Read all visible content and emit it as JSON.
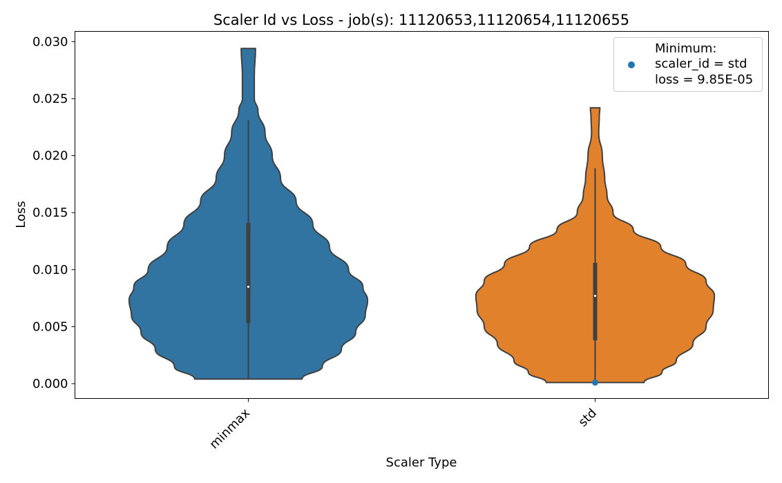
{
  "chart_data": {
    "type": "violin",
    "title": "Scaler Id vs Loss - job(s): 11120653,11120654,11120655",
    "xlabel": "Scaler Type",
    "ylabel": "Loss",
    "categories": [
      "minmax",
      "std"
    ],
    "ylim": [
      -0.0013,
      0.0309
    ],
    "yticks": [
      {
        "value": 0.0,
        "label": "0.000"
      },
      {
        "value": 0.005,
        "label": "0.005"
      },
      {
        "value": 0.01,
        "label": "0.010"
      },
      {
        "value": 0.015,
        "label": "0.015"
      },
      {
        "value": 0.02,
        "label": "0.020"
      },
      {
        "value": 0.025,
        "label": "0.025"
      },
      {
        "value": 0.03,
        "label": "0.030"
      }
    ],
    "grid": false,
    "legend_position": "top-right",
    "series": [
      {
        "category": "minmax",
        "color": "#3274a1",
        "min": 0.0004,
        "max": 0.0294,
        "q1": 0.0053,
        "median": 0.0085,
        "q3": 0.0141,
        "whisker_low": 0.0004,
        "whisker_high": 0.0231,
        "density_profile": [
          [
            0.0004,
            0.45
          ],
          [
            0.0015,
            0.62
          ],
          [
            0.003,
            0.78
          ],
          [
            0.0045,
            0.9
          ],
          [
            0.006,
            0.98
          ],
          [
            0.0073,
            1.0
          ],
          [
            0.0085,
            0.96
          ],
          [
            0.01,
            0.84
          ],
          [
            0.012,
            0.68
          ],
          [
            0.014,
            0.54
          ],
          [
            0.016,
            0.4
          ],
          [
            0.018,
            0.27
          ],
          [
            0.02,
            0.2
          ],
          [
            0.022,
            0.14
          ],
          [
            0.024,
            0.08
          ],
          [
            0.025,
            0.05
          ],
          [
            0.027,
            0.05
          ],
          [
            0.0294,
            0.06
          ]
        ]
      },
      {
        "category": "std",
        "color": "#e1812c",
        "min": 0.0001,
        "max": 0.0242,
        "q1": 0.0038,
        "median": 0.0077,
        "q3": 0.0106,
        "whisker_low": 0.0001,
        "whisker_high": 0.0189,
        "density_profile": [
          [
            0.0001,
            0.41
          ],
          [
            0.001,
            0.56
          ],
          [
            0.002,
            0.68
          ],
          [
            0.0035,
            0.82
          ],
          [
            0.005,
            0.93
          ],
          [
            0.0065,
            0.99
          ],
          [
            0.0077,
            1.0
          ],
          [
            0.009,
            0.93
          ],
          [
            0.0105,
            0.76
          ],
          [
            0.012,
            0.55
          ],
          [
            0.0135,
            0.32
          ],
          [
            0.015,
            0.15
          ],
          [
            0.0165,
            0.1
          ],
          [
            0.018,
            0.08
          ],
          [
            0.02,
            0.06
          ],
          [
            0.022,
            0.03
          ],
          [
            0.0235,
            0.035
          ],
          [
            0.0242,
            0.04
          ]
        ]
      }
    ],
    "minimum_marker": {
      "category": "std",
      "value": 9.85e-05,
      "color": "#1f77b4"
    },
    "legend": {
      "heading": "Minimum:",
      "line1": "scaler_id = std",
      "line2": "loss = 9.85E-05"
    }
  }
}
